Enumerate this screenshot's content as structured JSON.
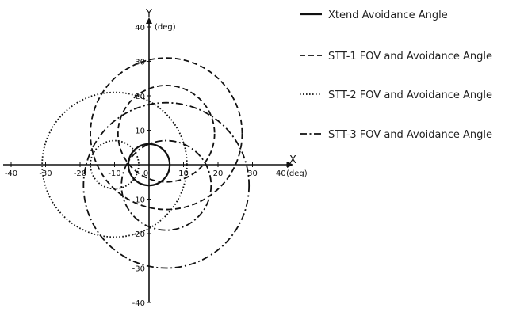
{
  "chart_data": {
    "type": "scatter",
    "title": "",
    "x_axis": {
      "label": "X",
      "unit": "(deg)",
      "min": -40,
      "max": 40,
      "ticks": [
        -40,
        -30,
        -20,
        -10,
        0,
        10,
        20,
        30,
        40
      ]
    },
    "y_axis": {
      "label": "Y",
      "unit": "(deg)",
      "min": -40,
      "max": 40,
      "ticks": [
        -40,
        -30,
        -20,
        -10,
        0,
        10,
        20,
        30,
        40
      ]
    },
    "grid": false,
    "legend_position": "right",
    "series": [
      {
        "name": "Xtend Avoidance Angle",
        "dash": "solid",
        "circles": [
          {
            "cx": 0,
            "cy": 0,
            "r": 6
          }
        ]
      },
      {
        "name": "STT-1 FOV and Avoidance Angle",
        "dash": "dashed",
        "circles": [
          {
            "cx": 5,
            "cy": 9,
            "r": 22
          },
          {
            "cx": 5,
            "cy": 9,
            "r": 14
          }
        ]
      },
      {
        "name": "STT-2 FOV and Avoidance Angle",
        "dash": "dotted",
        "circles": [
          {
            "cx": -10,
            "cy": 0,
            "r": 21
          },
          {
            "cx": -10,
            "cy": 0,
            "r": 7
          }
        ]
      },
      {
        "name": "STT-3 FOV and Avoidance Angle",
        "dash": "dashdot",
        "circles": [
          {
            "cx": 5,
            "cy": -6,
            "r": 24
          },
          {
            "cx": 5,
            "cy": -6,
            "r": 13
          }
        ]
      }
    ]
  }
}
